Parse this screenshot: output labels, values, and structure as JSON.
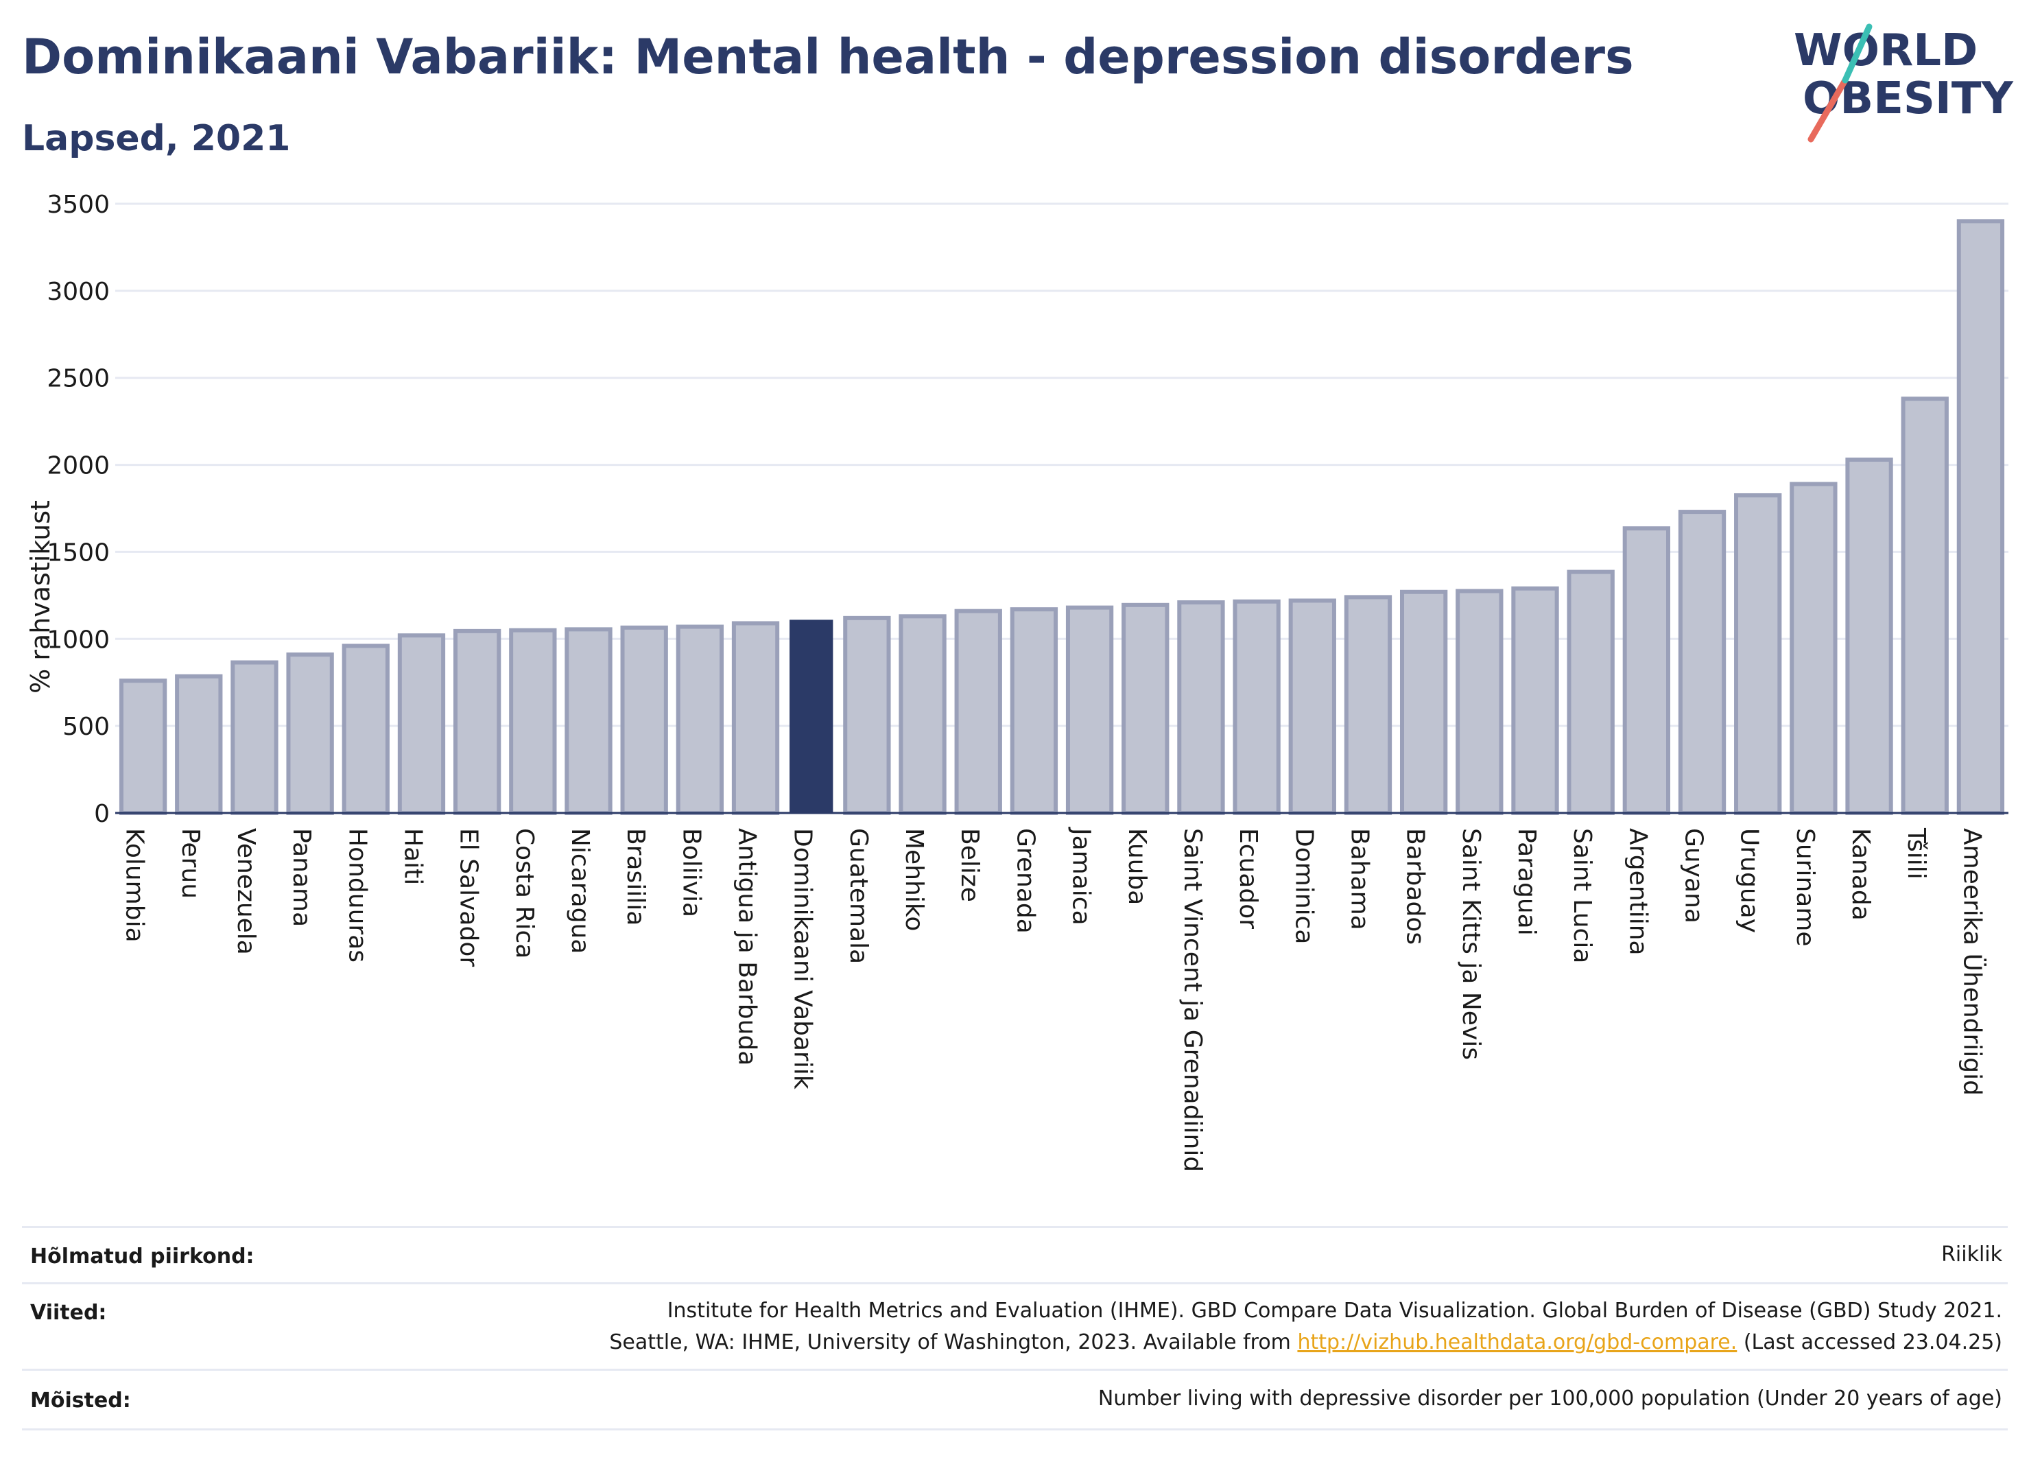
{
  "title": "Dominikaani Vabariik: Mental health - depression disorders",
  "subtitle": "Lapsed, 2021",
  "logo": {
    "line1": "WORLD",
    "line2": "OBESITY",
    "accent_colors": [
      "#e86a5c",
      "#3bbfb4"
    ],
    "text_color": "#2b3a67"
  },
  "colors": {
    "bar_default": "#bfc3d1",
    "bar_default_stroke": "#9aa0b9",
    "bar_highlight": "#2b3a67",
    "grid": "#e6e9f2",
    "axis": "#2b3a67"
  },
  "chart_data": {
    "type": "bar",
    "ylabel": "% rahvastikust",
    "ylim": [
      0,
      3500
    ],
    "yticks": [
      0,
      500,
      1000,
      1500,
      2000,
      2500,
      3000,
      3500
    ],
    "highlight": "Dominikaani Vabariik",
    "categories": [
      "Kolumbia",
      "Peruu",
      "Venezuela",
      "Panama",
      "Honduuras",
      "Haiti",
      "El Salvador",
      "Costa Rica",
      "Nicaragua",
      "Brasiilia",
      "Boliivia",
      "Antigua ja Barbuda",
      "Dominikaani Vabariik",
      "Guatemala",
      "Mehhiko",
      "Belize",
      "Grenada",
      "Jamaica",
      "Kuuba",
      "Saint Vincent ja Grenadiinid",
      "Ecuador",
      "Dominica",
      "Bahama",
      "Barbados",
      "Saint Kitts ja Nevis",
      "Paraguai",
      "Saint Lucia",
      "Argentiina",
      "Guyana",
      "Uruguay",
      "Suriname",
      "Kanada",
      "Tšiili",
      "Ameerika Ühendriigid"
    ],
    "values": [
      760,
      785,
      865,
      910,
      960,
      1020,
      1045,
      1050,
      1055,
      1065,
      1070,
      1090,
      1110,
      1120,
      1130,
      1160,
      1170,
      1180,
      1195,
      1210,
      1215,
      1220,
      1240,
      1270,
      1275,
      1290,
      1385,
      1635,
      1730,
      1825,
      1890,
      2030,
      2380,
      3400
    ],
    "grid": true,
    "legend": "none"
  },
  "footer": {
    "region_label": "Hõlmatud piirkond:",
    "region_value": "Riiklik",
    "refs_label": "Viited:",
    "refs_line1": "Institute for Health Metrics and Evaluation (IHME). GBD Compare Data Visualization. Global Burden of Disease (GBD) Study 2021.",
    "refs_line2_pre": "Seattle, WA: IHME, University of Washington, 2023. Available from ",
    "refs_link": "http://vizhub.healthdata.org/gbd-compare.",
    "refs_line2_post": " (Last accessed 23.04.25)",
    "defs_label": "Mõisted:",
    "defs_value": "Number living with depressive disorder per 100,000 population (Under 20 years of age)"
  }
}
